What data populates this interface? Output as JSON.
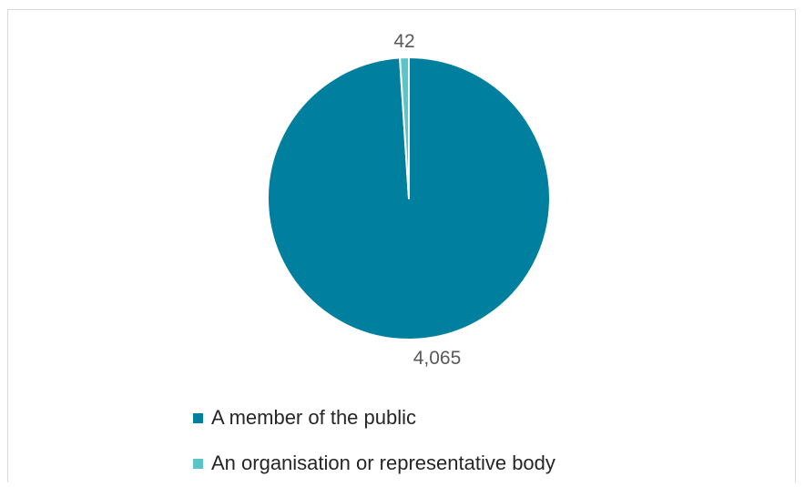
{
  "chart_data": {
    "type": "pie",
    "categories": [
      "A member of the public",
      "An organisation or representative body"
    ],
    "values": [
      4065,
      42
    ],
    "data_labels": [
      "4,065",
      "42"
    ],
    "colors": [
      "#00809e",
      "#5bc4c8"
    ],
    "legend_position": "bottom",
    "start_angle": "12 o'clock",
    "direction": "clockwise"
  }
}
